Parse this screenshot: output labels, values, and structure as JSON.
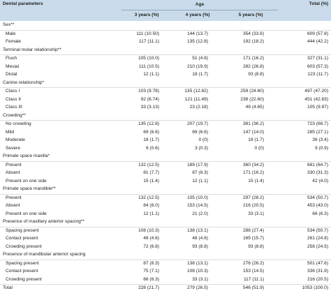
{
  "table": {
    "header": {
      "parameter": "Dental parameters",
      "age_group": "Age",
      "age_columns": [
        "3 years (%)",
        "4 years (%)",
        "5 years (%)"
      ],
      "total": "Total (%)"
    },
    "sections": [
      {
        "title": "Sex**",
        "rows": [
          {
            "label": "Male",
            "values": [
              "111 (10.50)",
              "144 (13.7)",
              "354 (33.6)",
              "609 (57.8)"
            ]
          },
          {
            "label": "Female",
            "values": [
              "117 (11.1)",
              "135 (12.8)",
              "192 (18.2)",
              "444 (42.2)"
            ]
          }
        ]
      },
      {
        "title": "Terminal molar relationship**",
        "rows": [
          {
            "label": "Flush",
            "values": [
              "105 (10.0)",
              "51 (4.8)",
              "171 (16.2)",
              "327 (31.1)"
            ]
          },
          {
            "label": "Mesial",
            "values": [
              "111 (10.5)",
              "210 (19.9)",
              "282 (26.8)",
              "603 (57.3)"
            ]
          },
          {
            "label": "Distal",
            "values": [
              "12 (1.1)",
              "18 (1.7)",
              "93 (8.8)",
              "123 (11.7)"
            ]
          }
        ]
      },
      {
        "title": "Canine relationship*",
        "rows": [
          {
            "label": "Class I",
            "values": [
              "103 (9.78)",
              "135 (12.82)",
              "259 (24.60)",
              "497 (47.20)"
            ]
          },
          {
            "label": "Class II",
            "values": [
              "92 (8.74)",
              "121 (11.49)",
              "238 (22.60)",
              "451 (42.83)"
            ]
          },
          {
            "label": "Class III",
            "values": [
              "33 (3.13)",
              "23 (2.18)",
              "49 (4.65)",
              "105 (9.97)"
            ]
          }
        ]
      },
      {
        "title": "Crowding**",
        "rows": [
          {
            "label": "No crowding",
            "values": [
              "135 (12.8)",
              "207 (19.7)",
              "381 (36.2)",
              "723 (68.7)"
            ]
          },
          {
            "label": "Mild",
            "values": [
              "69 (6.6)",
              "69 (6.6)",
              "147 (14.0)",
              "285 (27.1)"
            ]
          },
          {
            "label": "Moderate",
            "values": [
              "18 (1.7)",
              "0 (0)",
              "18 (1.7)",
              "36 (3.4)"
            ]
          },
          {
            "label": "Severe",
            "values": [
              "6 (0.6)",
              "3 (0.3)",
              "0 (0)",
              "9 (0.9)"
            ]
          }
        ]
      },
      {
        "title": "Primate space maxilla*",
        "rows": [
          {
            "label": "Present",
            "values": [
              "132 (12.5)",
              "189 (17.9)",
              "360 (34.2)",
              "681 (64.7)"
            ]
          },
          {
            "label": "Absent",
            "values": [
              "81 (7.7)",
              "87 (8.3)",
              "171 (16.2)",
              "330 (31.3)"
            ]
          },
          {
            "label": "Present on one side",
            "values": [
              "15 (1.4)",
              "12 (1.1)",
              "15 (1.4)",
              "42 (4.0)"
            ]
          }
        ]
      },
      {
        "title": "Primate space mandible**",
        "rows": [
          {
            "label": "Present",
            "values": [
              "132 (12.5)",
              "105 (10.0)",
              "297 (28.2)",
              "534 (50.7)"
            ]
          },
          {
            "label": "Absent",
            "values": [
              "84 (8.0)",
              "153 (14.5)",
              "216 (20.5)",
              "453 (43.0)"
            ]
          },
          {
            "label": "Present on one side",
            "values": [
              "12 (1.1)",
              "21 (2.0)",
              "33 (3.1)",
              "66 (6.3)"
            ]
          }
        ]
      },
      {
        "title": "Presence of maxillary anterior spacing**",
        "rows": [
          {
            "label": "Spacing present",
            "values": [
              "108 (10.3)",
              "138 (13.1)",
              "288 (27.4)",
              "534 (50.7)"
            ]
          },
          {
            "label": "Contact present",
            "values": [
              "48 (4.6)",
              "48 (4.6)",
              "165 (15.7)",
              "261 (24.8)"
            ]
          },
          {
            "label": "Crowding present",
            "values": [
              "72 (6.8)",
              "93 (8.8)",
              "93 (8.8)",
              "258 (24.5)"
            ]
          }
        ]
      },
      {
        "title": "Presence of mandibular anterior spacing",
        "rows": [
          {
            "label": "Spacing present",
            "values": [
              "87 (8.3)",
              "138 (13.1)",
              "276 (26.2)",
              "501 (47.6)"
            ]
          },
          {
            "label": "Contact present",
            "values": [
              "75 (7.1)",
              "108 (10.3)",
              "153 (14.5)",
              "336 (31.9)"
            ]
          },
          {
            "label": "Crowding present",
            "values": [
              "66 (6.3)",
              "33 (3.1)",
              "117 (11.1)",
              "216 (20.5)"
            ]
          }
        ]
      }
    ],
    "total_row": {
      "label": "Total",
      "values": [
        "228 (21.7)",
        "279 (26.5)",
        "546 (51.9)",
        "1053 (100.0)"
      ]
    }
  }
}
